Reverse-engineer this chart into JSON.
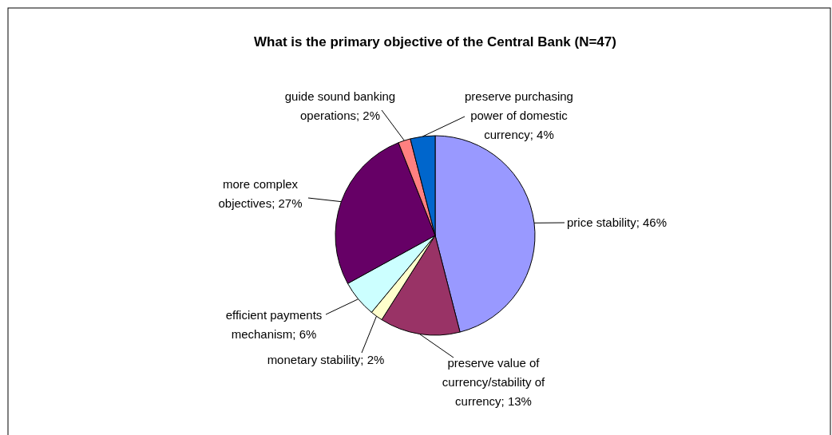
{
  "chart_data": {
    "type": "pie",
    "title": "What is the primary objective of the Central Bank (N=47)",
    "categories": [
      "price stability",
      "preserve value of currency/stability of currency",
      "monetary stability",
      "efficient payments mechanism",
      "more complex objectives",
      "guide sound banking operations",
      "preserve purchasing power of domestic currency"
    ],
    "values": [
      46,
      13,
      2,
      6,
      27,
      2,
      4
    ],
    "value_labels": [
      "46%",
      "13%",
      "2%",
      "6%",
      "27%",
      "2%",
      "4%"
    ],
    "colors": [
      "#9999ff",
      "#993366",
      "#ffffcc",
      "#ccffff",
      "#660066",
      "#ff8080",
      "#0066cc"
    ]
  }
}
